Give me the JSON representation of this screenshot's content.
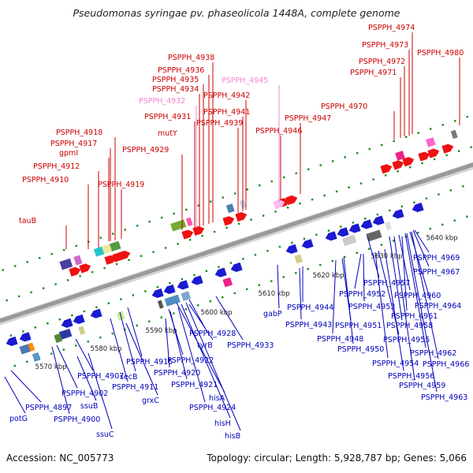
{
  "title": "Pseudomonas syringae pv. phaseolicola 1448A, complete genome",
  "footer": {
    "accession": "Accession: NC_005773",
    "summary": "Topology: circular; Length: 5,928,787 bp; Genes: 5,066"
  },
  "scale_labels": [
    "5570 kbp",
    "5580 kbp",
    "5590 kbp",
    "5600 kbp",
    "5610 kbp",
    "5620 kbp",
    "5630 kbp",
    "5640 kbp"
  ],
  "colors": {
    "top_label": "#cc0000",
    "top_label_pink": "#ee88cc",
    "bottom_label": "#0000bb",
    "backbone": "#999999",
    "tick": "#1a8a1a"
  },
  "top_labels": [
    {
      "text": "tauB",
      "pink": false
    },
    {
      "text": "PSPPH_4910",
      "pink": false
    },
    {
      "text": "PSPPH_4912",
      "pink": false
    },
    {
      "text": "gpmI",
      "pink": false
    },
    {
      "text": "PSPPH_4917",
      "pink": false
    },
    {
      "text": "PSPPH_4918",
      "pink": false
    },
    {
      "text": "PSPPH_4919",
      "pink": false
    },
    {
      "text": "PSPPH_4929",
      "pink": false
    },
    {
      "text": "mutY",
      "pink": false
    },
    {
      "text": "PSPPH_4931",
      "pink": false
    },
    {
      "text": "PSPPH_4932",
      "pink": true
    },
    {
      "text": "PSPPH_4934",
      "pink": false
    },
    {
      "text": "PSPPH_4935",
      "pink": false
    },
    {
      "text": "PSPPH_4936",
      "pink": false
    },
    {
      "text": "PSPPH_4938",
      "pink": false
    },
    {
      "text": "PSPPH_4939",
      "pink": false
    },
    {
      "text": "PSPPH_4941",
      "pink": false
    },
    {
      "text": "PSPPH_4942",
      "pink": false
    },
    {
      "text": "PSPPH_4945",
      "pink": true
    },
    {
      "text": "PSPPH_4946",
      "pink": false
    },
    {
      "text": "PSPPH_4947",
      "pink": false
    },
    {
      "text": "PSPPH_4970",
      "pink": false
    },
    {
      "text": "PSPPH_4971",
      "pink": false
    },
    {
      "text": "PSPPH_4972",
      "pink": false
    },
    {
      "text": "PSPPH_4973",
      "pink": false
    },
    {
      "text": "PSPPH_4974",
      "pink": false
    },
    {
      "text": "PSPPH_4980",
      "pink": false
    }
  ],
  "bottom_labels": [
    "potG",
    "PSPPH_4897",
    "PSPPH_4900",
    "ssuC",
    "ssuB",
    "PSPPH_4902",
    "PSPPH_4907",
    "grxC",
    "PSPPH_4911",
    "secB",
    "PSPPH_4915",
    "PSPPH_4920",
    "PSPPH_4922",
    "PSPPH_4921",
    "PSPPH_4924",
    "hisH",
    "hisB",
    "hisA",
    "tyrB",
    "PSPPH_4928",
    "PSPPH_4933",
    "gabP",
    "PSPPH_4943",
    "PSPPH_4944",
    "PSPPH_4948",
    "PSPPH_4950",
    "PSPPH_4951",
    "PSPPH_4952",
    "PSPPH_4953",
    "PSPPH_4954",
    "PSPPH_4955",
    "PSPPH_4956",
    "PSPPH_4957",
    "PSPPH_4958",
    "PSPPH_4959",
    "PSPPH_4960",
    "PSPPH_4961",
    "PSPPH_4962",
    "PSPPH_4963",
    "PSPPH_4964",
    "PSPPH_4966",
    "PSPPH_4967",
    "PSPPH_4969"
  ]
}
